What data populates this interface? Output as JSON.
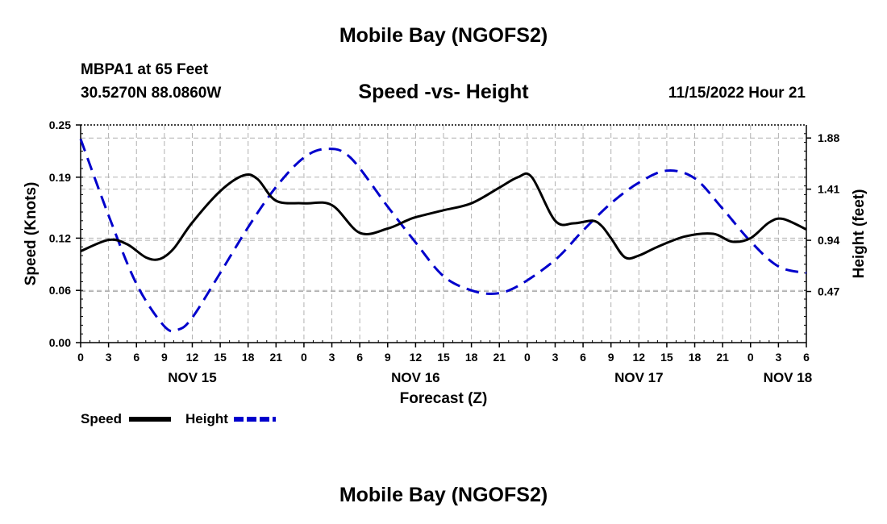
{
  "header": {
    "title": "Mobile Bay (NGOFS2)",
    "station": "MBPA1 at 65 Feet",
    "coords": "30.5270N  88.0860W",
    "subtitle": "Speed -vs- Height",
    "datetime": "11/15/2022 Hour 21"
  },
  "footer": {
    "title": "Mobile Bay (NGOFS2)"
  },
  "colors": {
    "speed": "#000000",
    "height": "#0000cc",
    "grid": "#b0b0b0"
  },
  "chart_data": {
    "type": "line",
    "title": "Speed -vs- Height",
    "xlabel": "Forecast (Z)",
    "ylabel_left": "Speed (Knots)",
    "ylabel_right": "Height (feet)",
    "x_range_hours": [
      0,
      78
    ],
    "x_tick_step_hours": 3,
    "x_tick_labels": [
      "0",
      "3",
      "6",
      "9",
      "12",
      "15",
      "18",
      "21",
      "0",
      "3",
      "6",
      "9",
      "12",
      "15",
      "18",
      "21",
      "0",
      "3",
      "6",
      "9",
      "12",
      "15",
      "18",
      "21",
      "0",
      "3",
      "6"
    ],
    "day_labels": [
      {
        "label": "NOV 15",
        "hour": 12
      },
      {
        "label": "NOV 16",
        "hour": 36
      },
      {
        "label": "NOV 17",
        "hour": 60
      },
      {
        "label": "NOV 18",
        "hour": 76
      }
    ],
    "ylim_left": [
      0,
      0.25
    ],
    "yticks_left": [
      "0.00",
      "0.06",
      "0.12",
      "0.19",
      "0.25"
    ],
    "ylim_right": [
      0,
      2.0
    ],
    "yticks_right": [
      "0.47",
      "0.94",
      "1.41",
      "1.88"
    ],
    "grid": true,
    "legend": [
      {
        "name": "Speed",
        "style": "solid"
      },
      {
        "name": "Height",
        "style": "dashed"
      }
    ],
    "series": [
      {
        "name": "Speed",
        "axis": "left",
        "style": "solid",
        "x": [
          0,
          3,
          5,
          7,
          8.5,
          10,
          12,
          15,
          17.5,
          19,
          21,
          24,
          27,
          30,
          33,
          35,
          36,
          39,
          42,
          45,
          47,
          48.5,
          51,
          53,
          55,
          56,
          57,
          58.5,
          60,
          62,
          65,
          68,
          70,
          72,
          74,
          75.5,
          78
        ],
        "values": [
          0.105,
          0.118,
          0.113,
          0.098,
          0.096,
          0.108,
          0.138,
          0.174,
          0.192,
          0.188,
          0.163,
          0.16,
          0.158,
          0.126,
          0.131,
          0.14,
          0.144,
          0.152,
          0.16,
          0.178,
          0.19,
          0.19,
          0.14,
          0.137,
          0.14,
          0.134,
          0.12,
          0.098,
          0.1,
          0.11,
          0.122,
          0.125,
          0.116,
          0.12,
          0.138,
          0.142,
          0.13
        ]
      },
      {
        "name": "Height",
        "axis": "right",
        "style": "dashed",
        "x": [
          0,
          3,
          6,
          9,
          10.5,
          12,
          15,
          18,
          21,
          24,
          26.5,
          29,
          33,
          36,
          39,
          42,
          44.5,
          47,
          51,
          54,
          57,
          60,
          63,
          66,
          69,
          72,
          75,
          78
        ],
        "values": [
          1.87,
          1.17,
          0.54,
          0.15,
          0.12,
          0.23,
          0.64,
          1.06,
          1.43,
          1.7,
          1.78,
          1.7,
          1.25,
          0.92,
          0.61,
          0.48,
          0.45,
          0.52,
          0.76,
          1.03,
          1.28,
          1.47,
          1.58,
          1.51,
          1.23,
          0.93,
          0.7,
          0.64
        ]
      }
    ]
  }
}
